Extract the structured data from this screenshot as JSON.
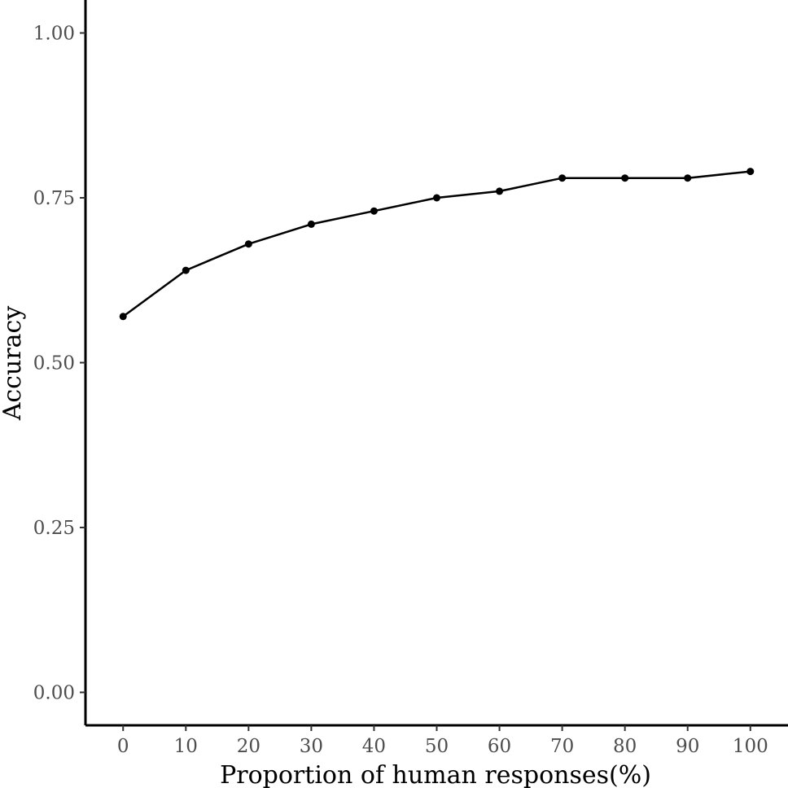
{
  "chart_data": {
    "type": "line",
    "title": "",
    "xlabel": "Proportion of human responses(%)",
    "ylabel": "Accuracy",
    "x": [
      0,
      10,
      20,
      30,
      40,
      50,
      60,
      70,
      80,
      90,
      100
    ],
    "series": [
      {
        "values": [
          0.57,
          0.64,
          0.68,
          0.71,
          0.73,
          0.75,
          0.76,
          0.78,
          0.78,
          0.78,
          0.79
        ]
      }
    ],
    "xticks": [
      "0",
      "10",
      "20",
      "30",
      "40",
      "50",
      "60",
      "70",
      "80",
      "90",
      "100"
    ],
    "yticks": [
      "0.00",
      "0.25",
      "0.50",
      "0.75",
      "1.00"
    ],
    "xlim": [
      -6,
      106
    ],
    "ylim": [
      -0.05,
      1.05
    ],
    "grid": false,
    "legend": "none",
    "colors": {
      "line": "#000000",
      "axis": "#000000",
      "tick_text": "#4d4d4d"
    }
  }
}
